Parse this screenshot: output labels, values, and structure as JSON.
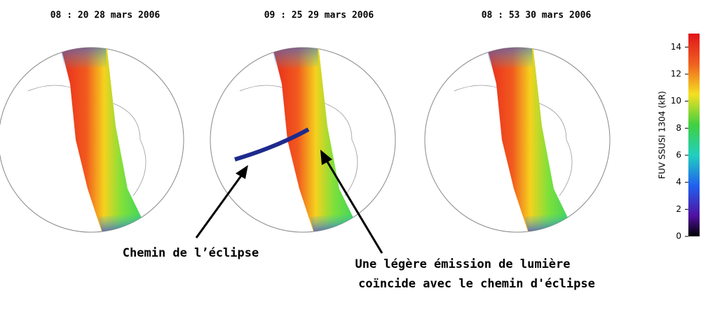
{
  "panels": [
    {
      "title": "08 : 20   28 mars 2006"
    },
    {
      "title": "09 : 25   29 mars 2006"
    },
    {
      "title": "08 : 53   30 mars 2006"
    }
  ],
  "colorbar": {
    "label": "FUV SSUSI  1304  (kR)",
    "lim": [
      0,
      15
    ],
    "ticks": [
      0,
      2,
      4,
      6,
      8,
      10,
      12,
      14
    ]
  },
  "annotations": [
    {
      "text": "Chemin de l’éclipse"
    },
    {
      "lines": [
        "Une légère émission de lumière",
        "coïncide avec le chemin d'éclipse"
      ]
    }
  ]
}
